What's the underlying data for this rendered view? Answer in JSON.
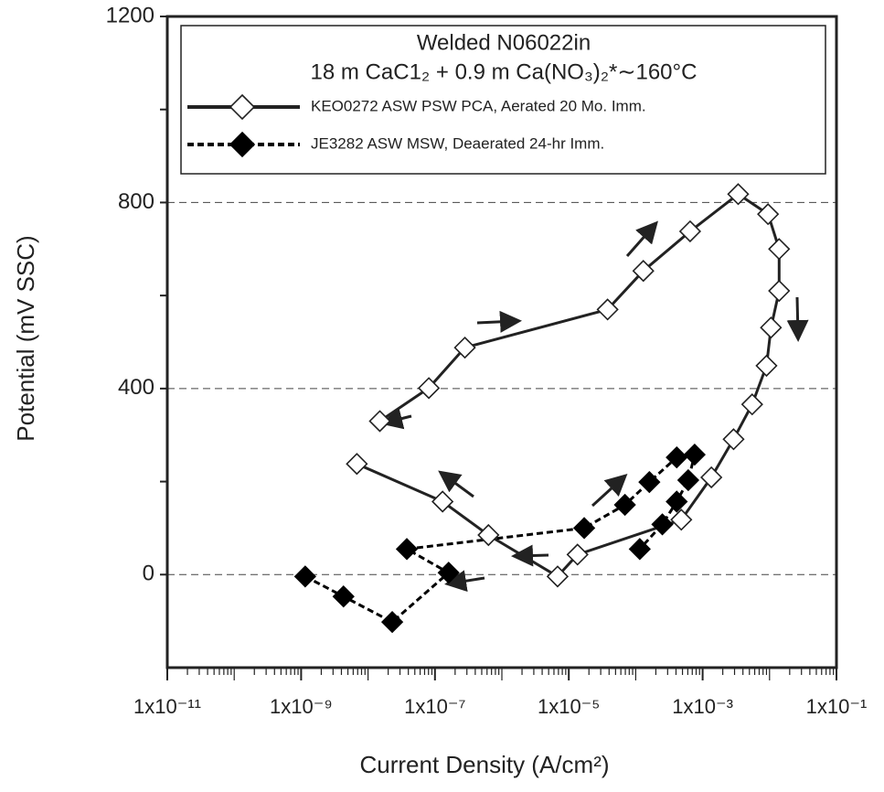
{
  "chart_data": {
    "type": "line",
    "title": "Welded N06022in",
    "subtitle": "18 m CaC1₂ + 0.9 m Ca(NO₃)₂*∼160°C",
    "x_label": "Current Density (A/cm²)",
    "y_label": "Potential (mV SSC)",
    "x_scale": "log",
    "xlim": [
      1e-11,
      0.1
    ],
    "xticks": [
      {
        "value": 1e-11,
        "label": "1x10⁻¹¹"
      },
      {
        "value": 1e-09,
        "label": "1x10⁻⁹"
      },
      {
        "value": 1e-07,
        "label": "1x10⁻⁷"
      },
      {
        "value": 1e-05,
        "label": "1x10⁻⁵"
      },
      {
        "value": 0.001,
        "label": "1x10⁻³"
      },
      {
        "value": 0.1,
        "label": "1x10⁻¹"
      }
    ],
    "ylim": [
      -200,
      1200
    ],
    "yticks": [
      0,
      400,
      800,
      1200
    ],
    "yminor_ticks": [
      200,
      600,
      1000
    ],
    "grid": true,
    "legend": "top",
    "series": [
      {
        "name": "KEO0272 ASW PSW PCA, Aerated 20 Mo. Imm.",
        "color": "#222222",
        "marker": "open-diamond",
        "dash": "solid",
        "x": [
          1.5e-08,
          8.1e-08,
          2.8e-07,
          3.8e-05,
          0.00013,
          0.00065,
          0.0034,
          0.0095,
          0.0139,
          0.0139,
          0.0105,
          0.009,
          0.0055,
          0.0029,
          0.00135,
          0.00048,
          1.35e-05,
          6.8e-06,
          6.3e-07,
          1.3e-07,
          6.8e-09
        ],
        "values": [
          330,
          401,
          488,
          570,
          653,
          738,
          818,
          775,
          700,
          610,
          531,
          449,
          366,
          291,
          209,
          118,
          43,
          -4,
          85,
          157,
          238
        ]
      },
      {
        "name": "JE3282 ASW MSW, Deaerated 24-hr Imm.",
        "color": "#000000",
        "marker": "filled-diamond",
        "dash": "dashed",
        "x": [
          1.15e-09,
          4.3e-09,
          2.3e-08,
          1.6e-07,
          3.8e-08,
          1.7e-05,
          6.9e-05,
          0.00016,
          0.00041,
          0.00076,
          0.00061,
          0.00041,
          0.00025,
          0.000115
        ],
        "values": [
          -4,
          -47,
          -102,
          4,
          55,
          100,
          150,
          199,
          252,
          258,
          203,
          157,
          108,
          55
        ]
      }
    ]
  }
}
